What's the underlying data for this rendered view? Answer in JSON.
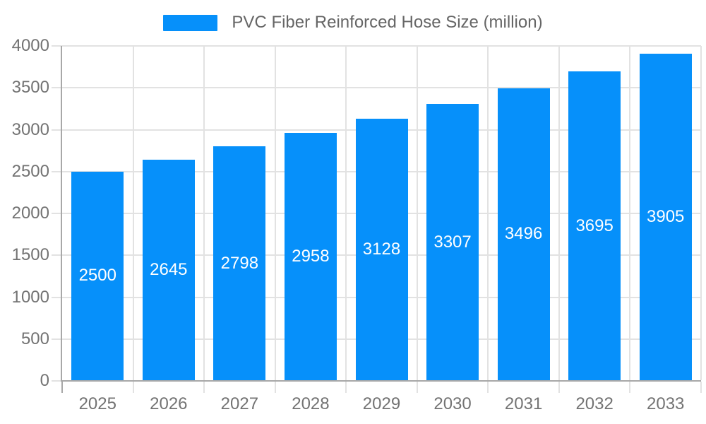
{
  "legend": {
    "label": "PVC Fiber Reinforced Hose Size (million)"
  },
  "chart_data": {
    "type": "bar",
    "title": "",
    "xlabel": "",
    "ylabel": "",
    "categories": [
      "2025",
      "2026",
      "2027",
      "2028",
      "2029",
      "2030",
      "2031",
      "2032",
      "2033"
    ],
    "series": [
      {
        "name": "PVC Fiber Reinforced Hose Size (million)",
        "values": [
          2500,
          2645,
          2798,
          2958,
          3128,
          3307,
          3496,
          3695,
          3905
        ]
      }
    ],
    "ylim": [
      0,
      4000
    ],
    "ytick_step": 500,
    "ytick_labels": [
      "0",
      "500",
      "1000",
      "1500",
      "2000",
      "2500",
      "3000",
      "3500",
      "4000"
    ],
    "grid": true,
    "legend_position": "top-center",
    "value_labels": "inside-center",
    "colors": {
      "bar": "#0690fa",
      "grid": "#e2e2e2",
      "axis": "#a8a8a8",
      "axis_label_text": "#737373",
      "legend_text": "#666666",
      "value_label_text": "#ffffff",
      "background": "#ffffff"
    }
  }
}
